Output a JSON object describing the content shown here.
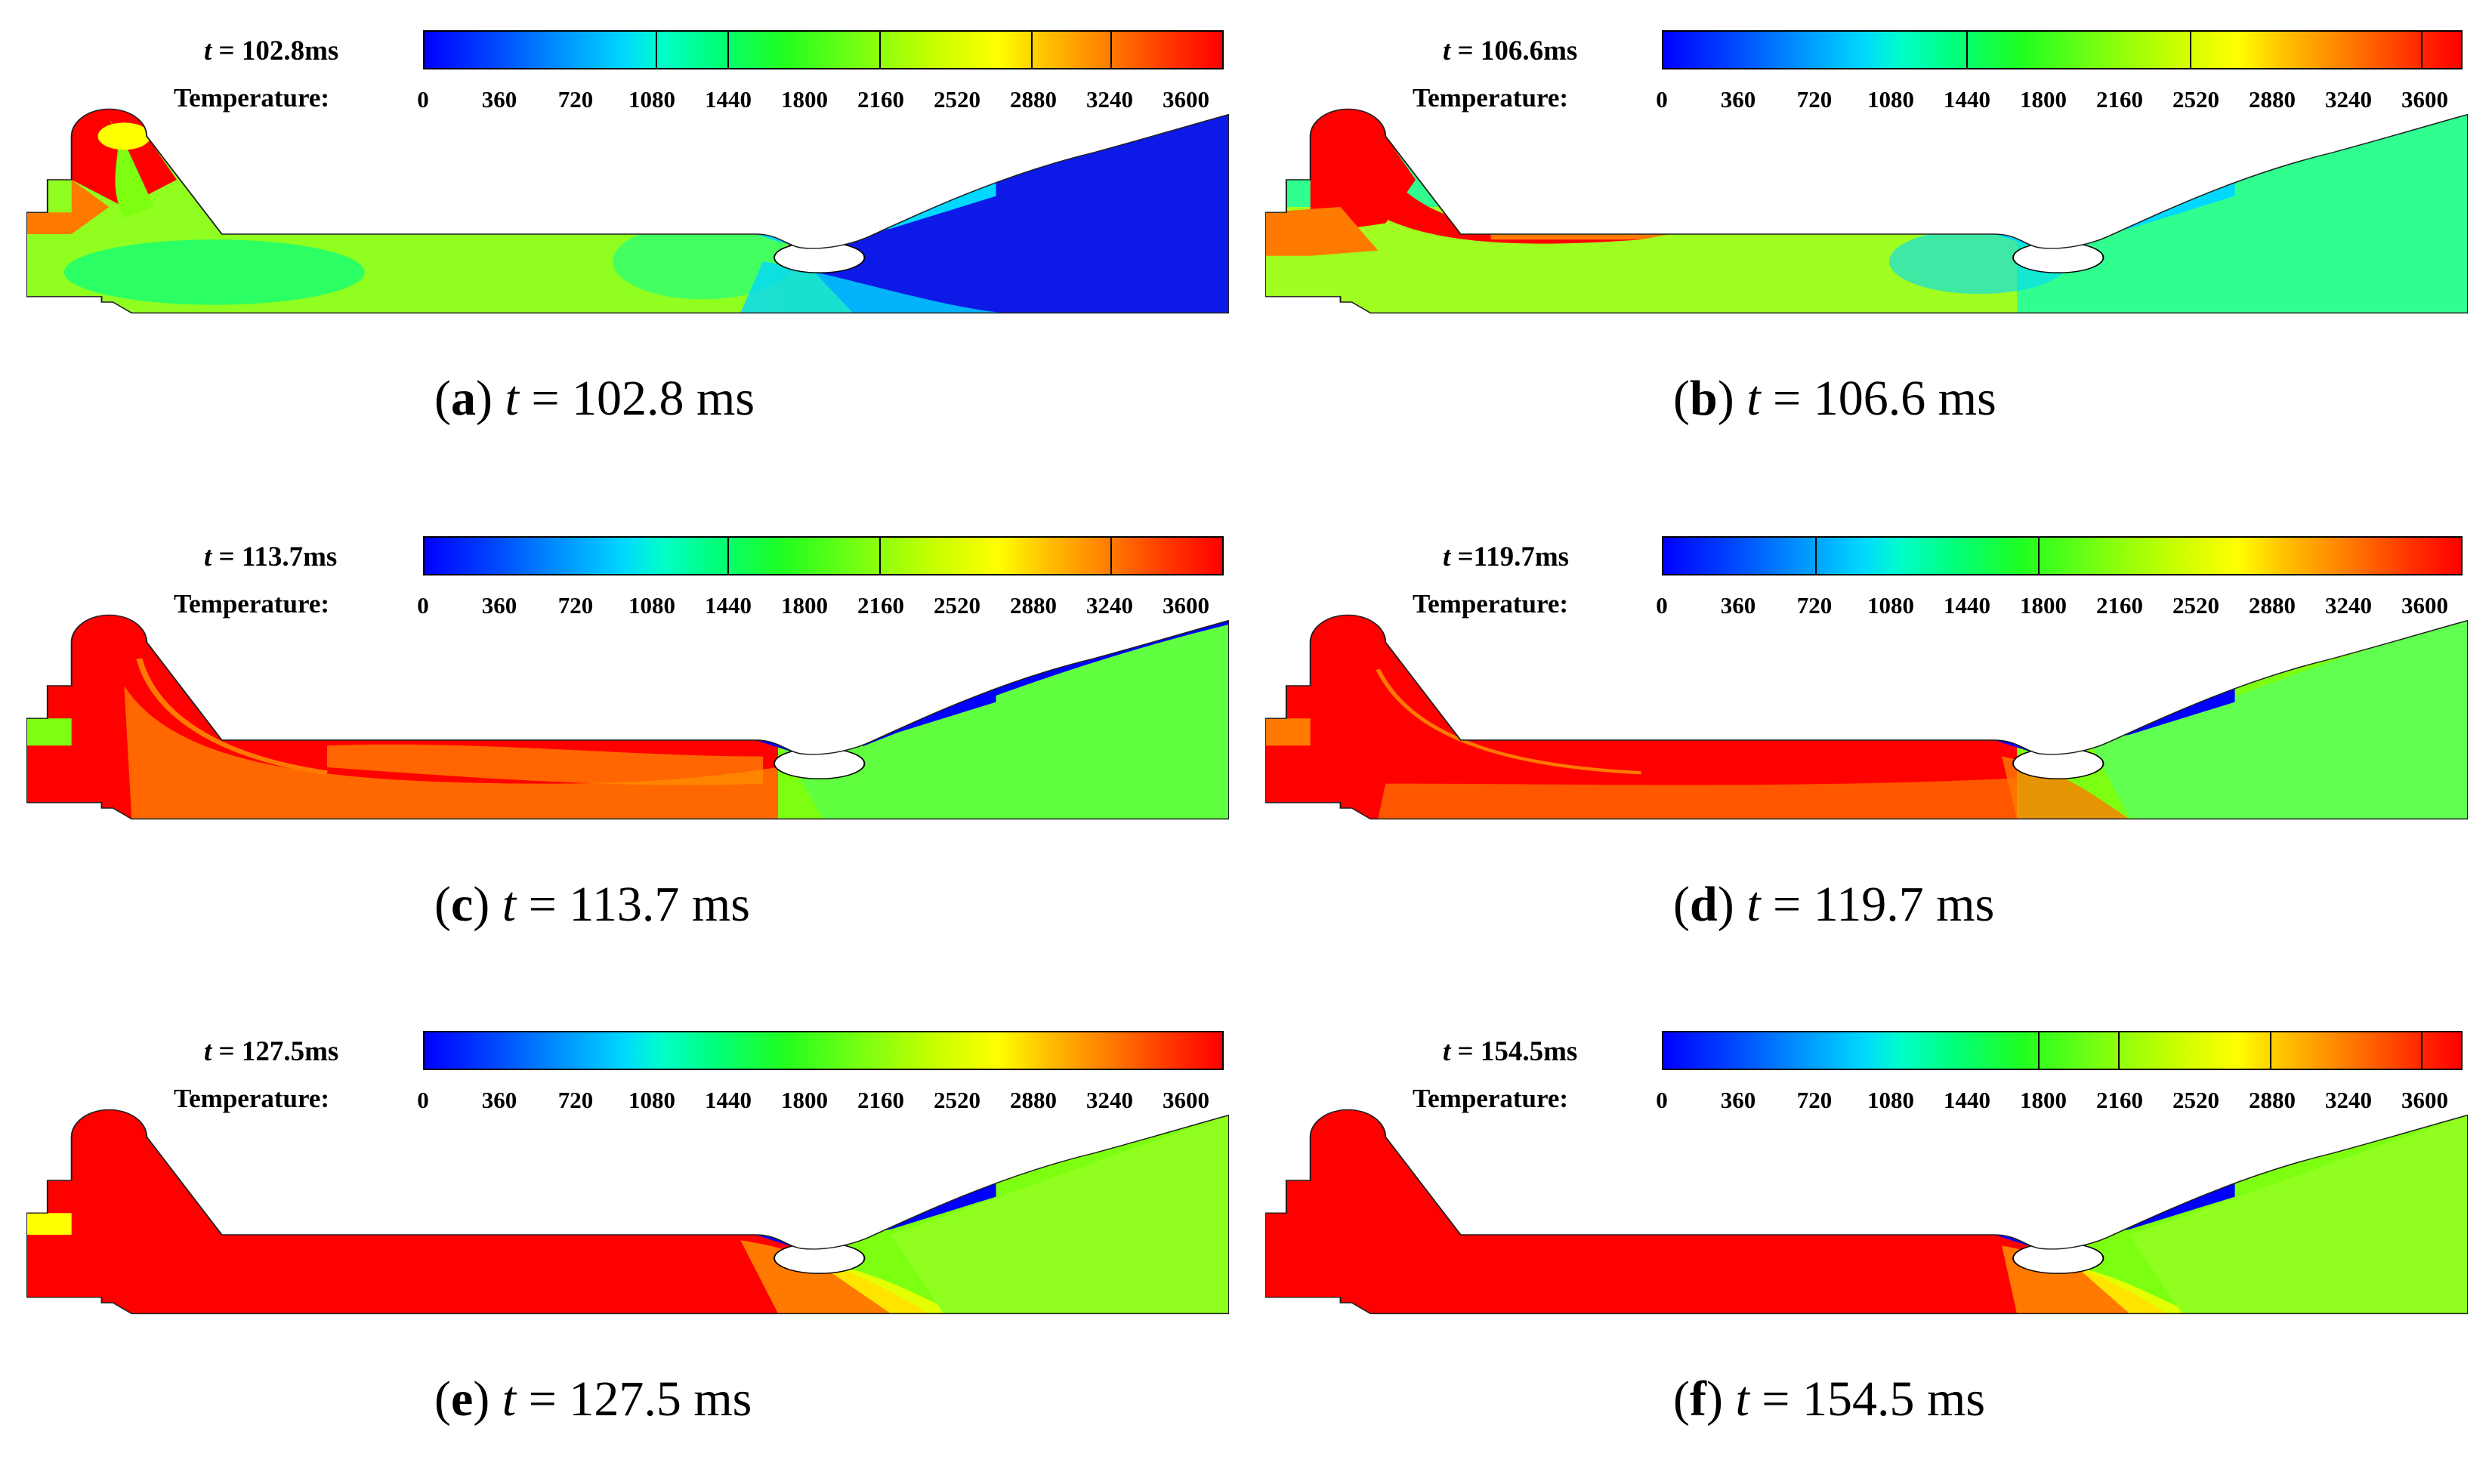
{
  "colorbar": {
    "label": "Temperature:",
    "ticks": [
      "0",
      "360",
      "720",
      "1080",
      "1440",
      "1800",
      "2160",
      "2520",
      "2880",
      "3240",
      "3600"
    ],
    "colors": [
      "#0000ff",
      "#00d8ff",
      "#00ff80",
      "#7cff10",
      "#ffff00",
      "#ff7a00",
      "#ff0000"
    ]
  },
  "panels": [
    {
      "id": "a",
      "time_label_var": "t",
      "time_label_rest": " = 102.8ms",
      "caption_letter": "a",
      "caption_var": "t",
      "caption_rest": " = 102.8 ms"
    },
    {
      "id": "b",
      "time_label_var": "t",
      "time_label_rest": " = 106.6ms",
      "caption_letter": "b",
      "caption_var": "t",
      "caption_rest": " = 106.6 ms"
    },
    {
      "id": "c",
      "time_label_var": "t",
      "time_label_rest": " = 113.7ms",
      "caption_letter": "c",
      "caption_var": "t",
      "caption_rest": " = 113.7 ms"
    },
    {
      "id": "d",
      "time_label_var": "t",
      "time_label_rest": " =119.7ms",
      "caption_letter": "d",
      "caption_var": "t",
      "caption_rest": " = 119.7 ms"
    },
    {
      "id": "e",
      "time_label_var": "t",
      "time_label_rest": " = 127.5ms",
      "caption_letter": "e",
      "caption_var": "t",
      "caption_rest": " = 127.5 ms"
    },
    {
      "id": "f",
      "time_label_var": "t",
      "time_label_rest": " = 154.5ms",
      "caption_letter": "f",
      "caption_var": "t",
      "caption_rest": " = 154.5 ms"
    }
  ]
}
